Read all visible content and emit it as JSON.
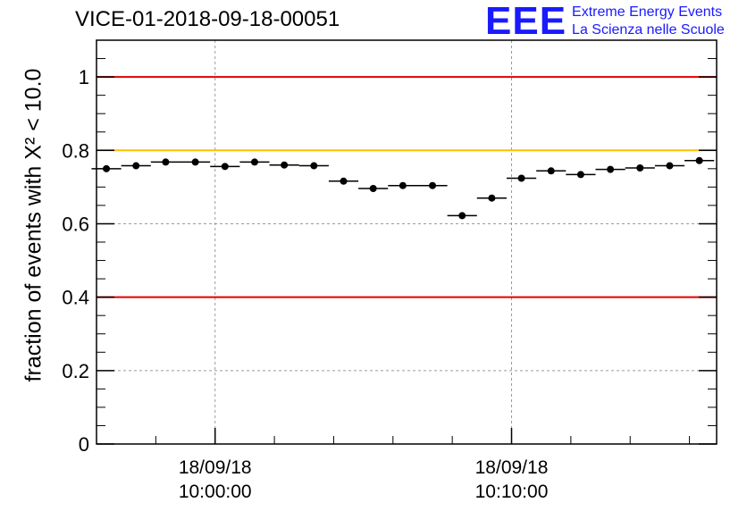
{
  "title": "VICE-01-2018-09-18-00051",
  "logo": {
    "mark": "EEE",
    "line1": "Extreme Energy Events",
    "line2": "La Scienza nelle Scuole",
    "color": "#1a1aff"
  },
  "chart_data": {
    "type": "scatter",
    "title": "VICE-01-2018-09-18-00051",
    "ylabel": "fraction of events with X² < 10.0",
    "ylim": [
      0,
      1.1
    ],
    "yticks": [
      0,
      0.2,
      0.4,
      0.6,
      0.8,
      1
    ],
    "ytick_labels": [
      "0",
      "0.2",
      "0.4",
      "0.6",
      "0.8",
      "1"
    ],
    "xlim": [
      "2018-09-18 09:56:00",
      "2018-09-18 10:16:55"
    ],
    "xticks": [
      {
        "x": "2018-09-18 10:00:00",
        "label_date": "18/09/18",
        "label_time": "10:00:00"
      },
      {
        "x": "2018-09-18 10:10:00",
        "label_date": "18/09/18",
        "label_time": "10:10:00"
      }
    ],
    "grid": true,
    "reference_lines": [
      {
        "y": 1.0,
        "color": "#e00000"
      },
      {
        "y": 0.8,
        "color": "#ffc000"
      },
      {
        "y": 0.4,
        "color": "#e00000"
      }
    ],
    "marker_color": "#000000",
    "points": [
      {
        "x": "2018-09-18 09:56:20",
        "y": 0.75
      },
      {
        "x": "2018-09-18 09:57:20",
        "y": 0.758
      },
      {
        "x": "2018-09-18 09:58:20",
        "y": 0.768
      },
      {
        "x": "2018-09-18 09:59:20",
        "y": 0.768
      },
      {
        "x": "2018-09-18 10:00:20",
        "y": 0.756
      },
      {
        "x": "2018-09-18 10:01:20",
        "y": 0.768
      },
      {
        "x": "2018-09-18 10:02:20",
        "y": 0.76
      },
      {
        "x": "2018-09-18 10:03:20",
        "y": 0.758
      },
      {
        "x": "2018-09-18 10:04:20",
        "y": 0.716
      },
      {
        "x": "2018-09-18 10:05:20",
        "y": 0.696
      },
      {
        "x": "2018-09-18 10:06:20",
        "y": 0.704
      },
      {
        "x": "2018-09-18 10:07:20",
        "y": 0.704
      },
      {
        "x": "2018-09-18 10:08:20",
        "y": 0.622
      },
      {
        "x": "2018-09-18 10:09:20",
        "y": 0.67
      },
      {
        "x": "2018-09-18 10:10:20",
        "y": 0.724
      },
      {
        "x": "2018-09-18 10:11:20",
        "y": 0.744
      },
      {
        "x": "2018-09-18 10:12:20",
        "y": 0.734
      },
      {
        "x": "2018-09-18 10:13:20",
        "y": 0.748
      },
      {
        "x": "2018-09-18 10:14:20",
        "y": 0.752
      },
      {
        "x": "2018-09-18 10:15:20",
        "y": 0.758
      },
      {
        "x": "2018-09-18 10:16:20",
        "y": 0.772
      }
    ]
  }
}
